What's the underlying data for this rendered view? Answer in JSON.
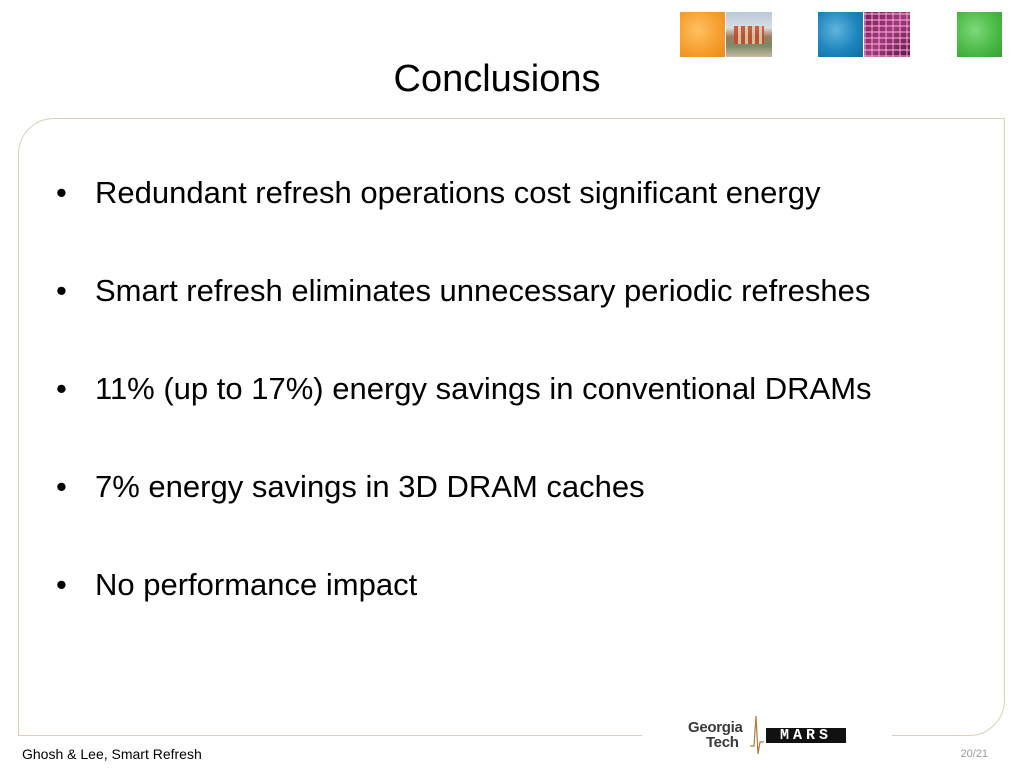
{
  "slide": {
    "title": "Conclusions",
    "bullets": [
      {
        "marker": "•",
        "text": "Redundant refresh operations cost significant energy"
      },
      {
        "marker": "•",
        "text": "Smart refresh eliminates unnecessary periodic refreshes"
      },
      {
        "marker": "•",
        "text": "11% (up to 17%) energy savings in conventional DRAMs"
      },
      {
        "marker": "•",
        "text": "7% energy savings in 3D DRAM caches"
      },
      {
        "marker": "•",
        "text": "No performance impact"
      }
    ]
  },
  "decor": {
    "tiles": [
      {
        "name": "orange-tile",
        "color": "#f6a030"
      },
      {
        "name": "building-photo-tile"
      },
      {
        "name": "blue-tile",
        "color": "#1e86be"
      },
      {
        "name": "chip-photo-tile",
        "color": "#a03a7c"
      },
      {
        "name": "green-tile",
        "color": "#4cbb48"
      }
    ],
    "frame_color": "#d9d2b8"
  },
  "logos": {
    "gt_line1": "Georgia",
    "gt_line2": "Tech",
    "mars": "MARS"
  },
  "footer": {
    "left": "Ghosh & Lee, Smart Refresh",
    "page": "20/21"
  }
}
